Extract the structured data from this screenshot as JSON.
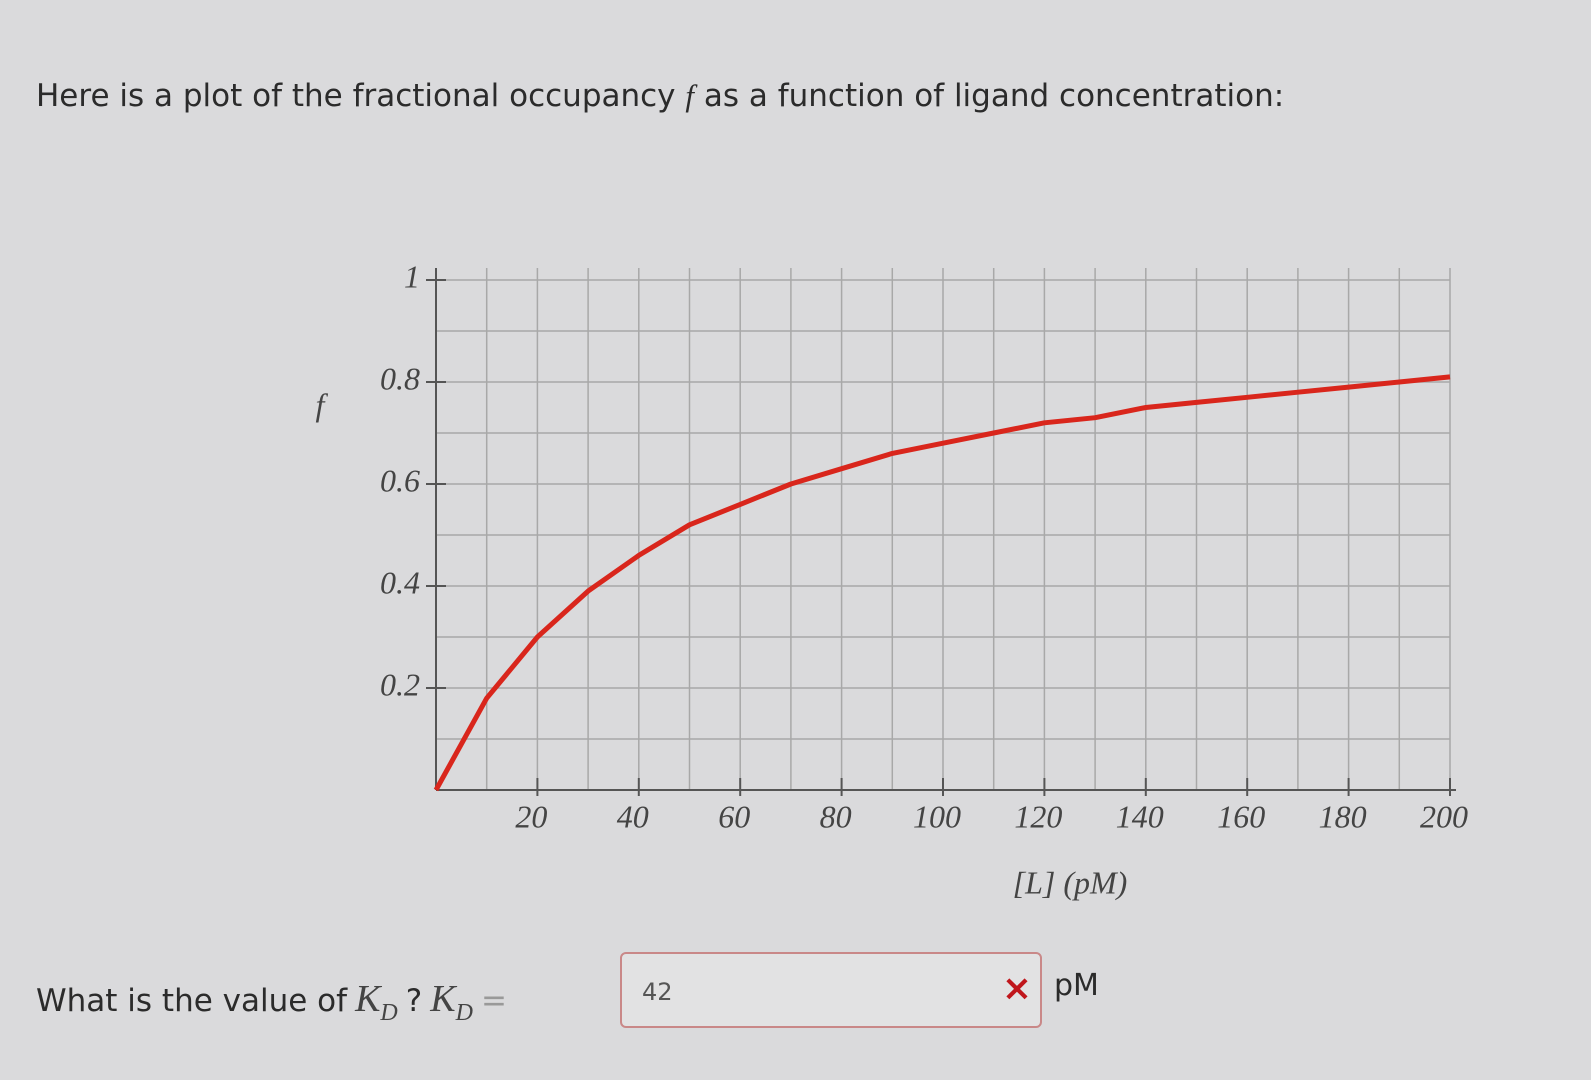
{
  "intro": {
    "before": "Here is a plot of the fractional occupancy",
    "symbol": "f",
    "after": "as a function of ligand concentration:"
  },
  "chart_data": {
    "type": "line",
    "y_label": "f",
    "x_label": "[L] (pM)",
    "x": [
      0,
      10,
      20,
      30,
      40,
      50,
      60,
      70,
      80,
      90,
      100,
      110,
      120,
      130,
      140,
      150,
      160,
      170,
      180,
      190,
      200
    ],
    "series": [
      {
        "color": "#d9261c",
        "values": [
          0,
          0.18,
          0.3,
          0.39,
          0.46,
          0.52,
          0.56,
          0.6,
          0.63,
          0.66,
          0.68,
          0.7,
          0.72,
          0.73,
          0.75,
          0.76,
          0.77,
          0.78,
          0.79,
          0.8,
          0.81
        ]
      }
    ],
    "xlim": [
      0,
      200
    ],
    "ylim": [
      0,
      1
    ],
    "xticks": [
      20,
      40,
      60,
      80,
      100,
      120,
      140,
      160,
      180,
      200
    ],
    "yticks": [
      0.2,
      0.4,
      0.6,
      0.8,
      1
    ],
    "x_minor_grid": [
      10,
      30,
      50,
      70,
      90,
      110,
      130,
      150,
      170,
      190
    ],
    "y_minor_grid": [
      0.1,
      0.3,
      0.5,
      0.7,
      0.9
    ],
    "grid": true
  },
  "question": {
    "prompt": "What is the value of",
    "symbol": "K",
    "subscript": "D",
    "mark": "?",
    "equals": "=",
    "answer": "42",
    "status": "×",
    "unit": "pM"
  }
}
